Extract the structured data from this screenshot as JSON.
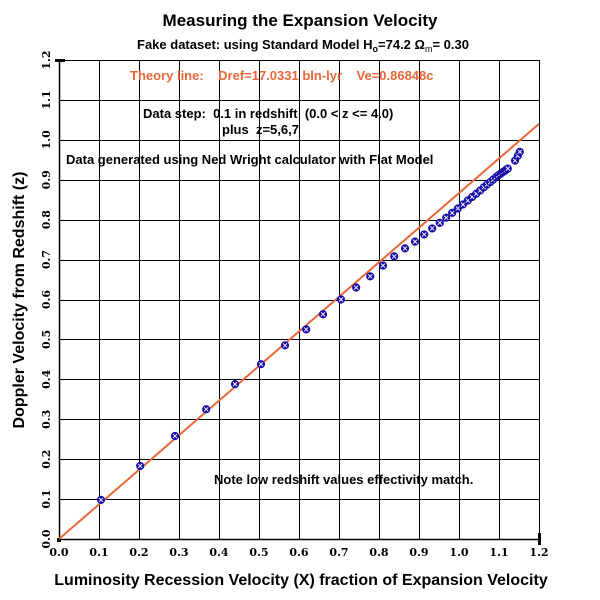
{
  "chart_data": {
    "type": "scatter",
    "title": "Measuring the Expansion Velocity",
    "subtitle": {
      "prefix": "Fake dataset:  using Standard Model H",
      "h_sub": "o",
      "h_value": "=74.2  ",
      "omega": "Ω",
      "omega_sub": "m",
      "omega_value": "= 0.30"
    },
    "xlabel": "Luminosity Recession Velocity (X) fraction of Expansion Velocity",
    "ylabel": "Doppler Velocity from Redshift (z)",
    "xlim": [
      0.0,
      1.2
    ],
    "ylim": [
      0.0,
      1.2
    ],
    "grid": true,
    "x_ticks": [
      "0.0",
      "0.1",
      "0.2",
      "0.3",
      "0.4",
      "0.5",
      "0.6",
      "0.7",
      "0.8",
      "0.9",
      "1.0",
      "1.1",
      "1.2"
    ],
    "y_ticks": [
      "0.0",
      "0.1",
      "0.2",
      "0.3",
      "0.4",
      "0.5",
      "0.6",
      "0.7",
      "0.8",
      "0.9",
      "1.0",
      "1.1",
      "1.2"
    ],
    "annotations": {
      "theory": "Theory line:    Dref=17.0331 bln-lyr    Ve=0.86848c",
      "data_step_1": "Data step:  0.1 in redshift  (0.0 < z <= 4.0)",
      "data_step_2": "plus  z=5,6,7",
      "generated": "Data generated using Ned Wright calculator with Flat Model",
      "low_redshift": "Note low redshift values effectivity match."
    },
    "colors": {
      "theory_line": "#e8673a",
      "points": "#1a0fa8",
      "grid": "#000000",
      "theory_text": "#e8673a"
    },
    "series": [
      {
        "name": "Theory line",
        "type": "line",
        "x": [
          0.0,
          1.2
        ],
        "y": [
          0.0,
          1.04
        ]
      },
      {
        "name": "Data",
        "type": "scatter",
        "x": [
          0.105,
          0.203,
          0.29,
          0.368,
          0.44,
          0.505,
          0.565,
          0.618,
          0.66,
          0.705,
          0.743,
          0.778,
          0.81,
          0.838,
          0.865,
          0.89,
          0.913,
          0.933,
          0.952,
          0.968,
          0.983,
          0.997,
          1.01,
          1.022,
          1.033,
          1.043,
          1.053,
          1.062,
          1.07,
          1.078,
          1.085,
          1.092,
          1.098,
          1.104,
          1.109,
          1.114,
          1.118,
          1.122,
          1.14,
          1.147,
          1.152
        ],
        "y": [
          0.098,
          0.183,
          0.258,
          0.325,
          0.388,
          0.438,
          0.485,
          0.525,
          0.563,
          0.6,
          0.63,
          0.658,
          0.685,
          0.708,
          0.728,
          0.745,
          0.763,
          0.778,
          0.792,
          0.805,
          0.817,
          0.828,
          0.838,
          0.848,
          0.857,
          0.865,
          0.873,
          0.881,
          0.888,
          0.894,
          0.9,
          0.906,
          0.911,
          0.915,
          0.919,
          0.922,
          0.925,
          0.928,
          0.948,
          0.96,
          0.97
        ]
      }
    ]
  }
}
